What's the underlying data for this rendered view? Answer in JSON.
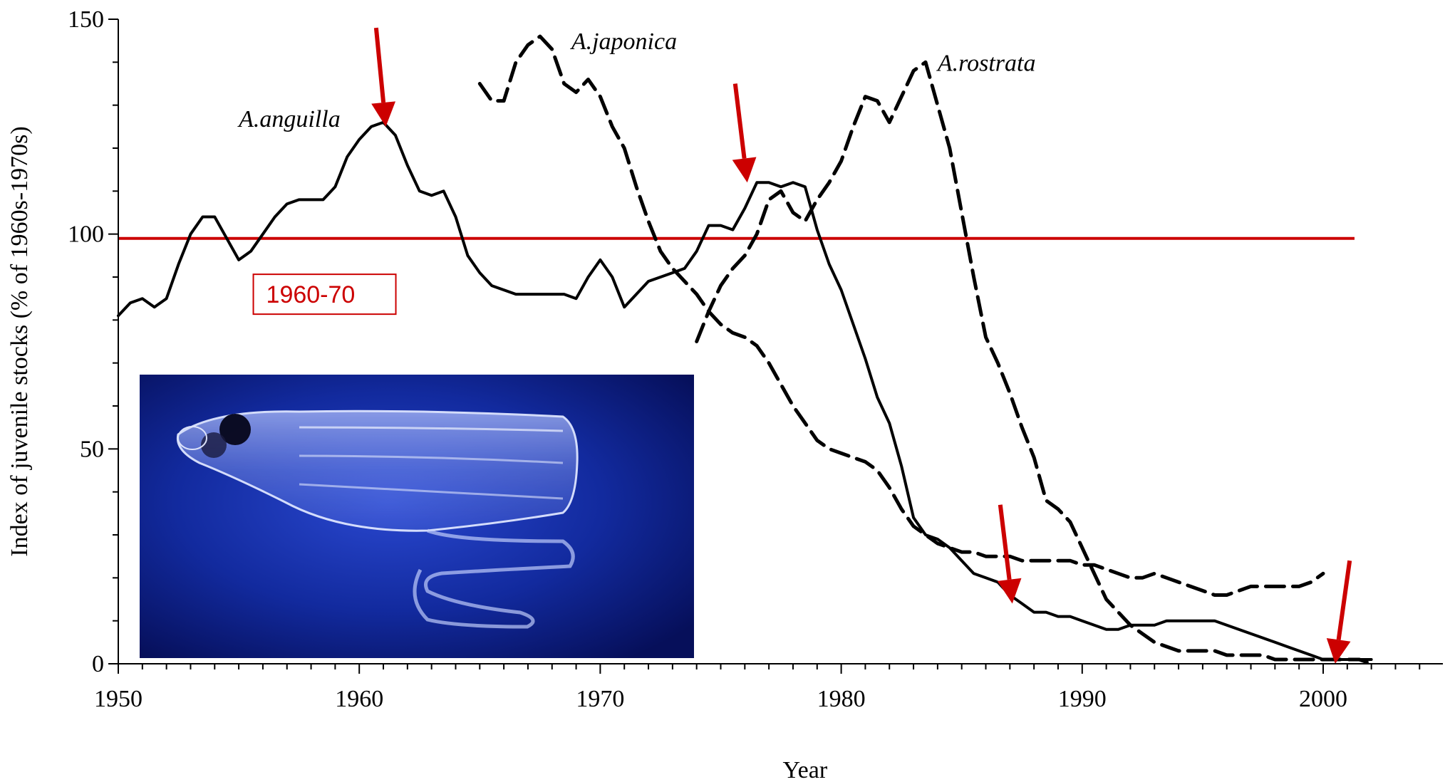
{
  "chart_data": {
    "type": "line",
    "title": "",
    "xlabel": "Year",
    "ylabel": "Index of juvenile stocks (% of 1960s-1970s)",
    "xlim": [
      1950,
      2005
    ],
    "ylim": [
      0,
      150
    ],
    "x_ticks": [
      1950,
      1960,
      1970,
      1980,
      1990,
      2000
    ],
    "y_ticks": [
      0,
      50,
      100,
      150
    ],
    "grid": false,
    "legend": "none",
    "reference_line": {
      "y": 99,
      "x_range": [
        1950,
        2001.3
      ],
      "label": "1960-70",
      "color": "#cc0000"
    },
    "series": [
      {
        "name": "A.anguilla",
        "style": "solid",
        "color": "#000000",
        "x": [
          1950,
          1950.5,
          1951,
          1951.5,
          1952,
          1952.5,
          1953,
          1953.5,
          1954,
          1954.5,
          1955,
          1955.5,
          1956,
          1956.5,
          1957,
          1957.5,
          1958,
          1958.5,
          1959,
          1959.5,
          1960,
          1960.5,
          1961,
          1961.5,
          1962,
          1962.5,
          1963,
          1963.5,
          1964,
          1964.5,
          1965,
          1965.5,
          1966,
          1966.5,
          1967,
          1967.5,
          1968,
          1968.5,
          1969,
          1969.5,
          1970,
          1970.5,
          1971,
          1971.5,
          1972,
          1972.5,
          1973,
          1973.5,
          1974,
          1974.5,
          1975,
          1975.5,
          1976,
          1976.5,
          1977,
          1977.5,
          1978,
          1978.5,
          1979,
          1979.5,
          1980,
          1980.5,
          1981,
          1981.5,
          1982,
          1982.5,
          1983,
          1983.5,
          1984,
          1984.5,
          1985,
          1985.5,
          1986,
          1986.5,
          1987,
          1987.5,
          1988,
          1988.5,
          1989,
          1989.5,
          1990,
          1990.5,
          1991,
          1991.5,
          1992,
          1992.5,
          1993,
          1993.5,
          1994,
          1994.5,
          1995,
          1995.5,
          1996,
          1996.5,
          1997,
          1997.5,
          1998,
          1998.5,
          1999,
          1999.5,
          2000,
          2000.5,
          2001,
          2001.5,
          2002
        ],
        "values": [
          81,
          84,
          85,
          83,
          85,
          93,
          100,
          104,
          104,
          99,
          94,
          96,
          100,
          104,
          107,
          108,
          108,
          108,
          111,
          118,
          122,
          125,
          126,
          123,
          116,
          110,
          109,
          110,
          104,
          95,
          91,
          88,
          87,
          86,
          86,
          86,
          86,
          86,
          85,
          90,
          94,
          90,
          83,
          86,
          89,
          90,
          91,
          92,
          96,
          102,
          102,
          101,
          106,
          112,
          112,
          111,
          112,
          111,
          101,
          93,
          87,
          79,
          71,
          62,
          56,
          46,
          34,
          30,
          29,
          27,
          24,
          21,
          20,
          19,
          16,
          14,
          12,
          12,
          11,
          11,
          10,
          9,
          8,
          8,
          9,
          9,
          9,
          10,
          10,
          10,
          10,
          10,
          9,
          8,
          7,
          6,
          5,
          4,
          3,
          2,
          1,
          1,
          1,
          1,
          1
        ]
      },
      {
        "name": "A.japonica",
        "style": "dashed",
        "color": "#000000",
        "x": [
          1965,
          1965.5,
          1966,
          1966.5,
          1967,
          1967.5,
          1968,
          1968.5,
          1969,
          1969.5,
          1970,
          1970.5,
          1971,
          1971.5,
          1972,
          1972.5,
          1973,
          1973.5,
          1974,
          1974.5,
          1975,
          1975.5,
          1976,
          1976.5,
          1977,
          1977.5,
          1978,
          1978.5,
          1979,
          1979.5,
          1980,
          1980.5,
          1981,
          1981.5,
          1982,
          1982.5,
          1983,
          1983.5,
          1984,
          1984.5,
          1985,
          1985.5,
          1986,
          1986.5,
          1987,
          1987.5,
          1988,
          1988.5,
          1989,
          1989.5,
          1990,
          1990.5,
          1991,
          1991.5,
          1992,
          1992.5,
          1993,
          1993.5,
          1994,
          1994.5,
          1995,
          1995.5,
          1996,
          1996.5,
          1997,
          1997.5,
          1998,
          1998.5,
          1999,
          1999.5,
          2000
        ],
        "values": [
          135,
          131,
          131,
          140,
          144,
          146,
          143,
          135,
          133,
          136,
          132,
          125,
          120,
          111,
          103,
          96,
          92,
          89,
          86,
          82,
          79,
          77,
          76,
          74,
          70,
          65,
          60,
          56,
          52,
          50,
          49,
          48,
          47,
          45,
          41,
          36,
          32,
          30,
          28,
          27,
          26,
          26,
          25,
          25,
          25,
          24,
          24,
          24,
          24,
          24,
          23,
          23,
          22,
          21,
          20,
          20,
          21,
          20,
          19,
          18,
          17,
          16,
          16,
          17,
          18,
          18,
          18,
          18,
          18,
          19,
          21
        ]
      },
      {
        "name": "A.rostrata",
        "style": "dashed",
        "color": "#000000",
        "x": [
          1974,
          1974.5,
          1975,
          1975.5,
          1976,
          1976.5,
          1977,
          1977.5,
          1978,
          1978.5,
          1979,
          1979.5,
          1980,
          1980.5,
          1981,
          1981.5,
          1982,
          1982.5,
          1983,
          1983.5,
          1984,
          1984.5,
          1985,
          1985.5,
          1986,
          1986.5,
          1987,
          1987.5,
          1988,
          1988.5,
          1989,
          1989.5,
          1990,
          1990.5,
          1991,
          1991.5,
          1992,
          1992.5,
          1993,
          1993.5,
          1994,
          1994.5,
          1995,
          1995.5,
          1996,
          1996.5,
          1997,
          1997.5,
          1998,
          1998.5,
          1999,
          1999.5,
          2000,
          2000.5,
          2001,
          2001.5,
          2002
        ],
        "values": [
          75,
          82,
          88,
          92,
          95,
          100,
          108,
          110,
          105,
          103,
          108,
          112,
          117,
          125,
          132,
          131,
          126,
          132,
          138,
          140,
          130,
          120,
          105,
          90,
          76,
          70,
          63,
          55,
          48,
          38,
          36,
          33,
          27,
          21,
          15,
          12,
          9,
          7,
          5,
          4,
          3,
          3,
          3,
          3,
          2,
          2,
          2,
          2,
          1,
          1,
          1,
          1,
          1,
          1,
          1,
          1,
          0
        ]
      }
    ],
    "annotations": [
      {
        "type": "arrow",
        "color": "#cc0000",
        "tip": [
          1961.1,
          125
        ],
        "tail": [
          1960.7,
          148
        ]
      },
      {
        "type": "arrow",
        "color": "#cc0000",
        "tip": [
          1976.1,
          112
        ],
        "tail": [
          1975.6,
          135
        ]
      },
      {
        "type": "arrow",
        "color": "#cc0000",
        "tip": [
          1987.1,
          14
        ],
        "tail": [
          1986.6,
          37
        ]
      },
      {
        "type": "arrow",
        "color": "#cc0000",
        "tip": [
          2000.5,
          0
        ],
        "tail": [
          2001.1,
          24
        ]
      }
    ],
    "series_label_positions": {
      "A.anguilla": {
        "x": 1955,
        "y": 125
      },
      "A.japonica": {
        "x": 1968.8,
        "y": 143
      },
      "A.rostrata": {
        "x": 1984,
        "y": 138
      }
    },
    "reference_label_position": {
      "x": 1955.9,
      "y": 86
    },
    "inset_photo": {
      "subject": "eel-leptocephalus-larva",
      "colors": {
        "background": "#0a1f8a",
        "glow": "#3d5fe0"
      }
    }
  }
}
